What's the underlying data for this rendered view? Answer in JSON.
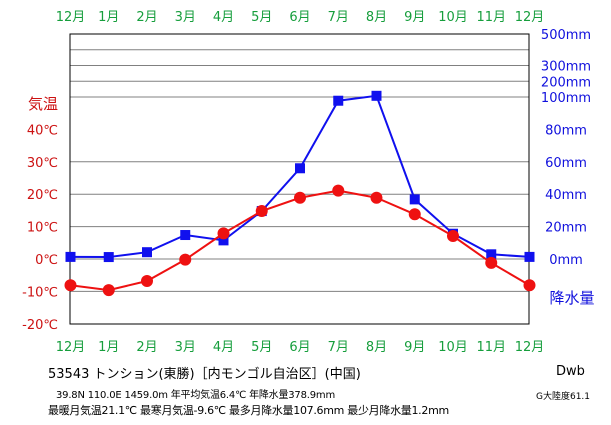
{
  "chart_data": {
    "type": "line",
    "months": [
      "12月",
      "1月",
      "2月",
      "3月",
      "4月",
      "5月",
      "6月",
      "7月",
      "8月",
      "9月",
      "10月",
      "11月",
      "12月"
    ],
    "temp_label": "気温",
    "temp_ticks": [
      "40℃",
      "30℃",
      "20℃",
      "10℃",
      "0℃",
      "-10℃",
      "-20℃"
    ],
    "temp_ylim": [
      -20,
      40
    ],
    "precip_label": "降水量",
    "precip_ticks": [
      "500mm",
      "300mm",
      "200mm",
      "100mm",
      "80mm",
      "60mm",
      "40mm",
      "20mm",
      "0mm"
    ],
    "precip_ylim": [
      0,
      500
    ],
    "series": [
      {
        "name": "気温",
        "unit": "℃",
        "color": "#ee1111",
        "marker": "circle",
        "values": [
          -8.1,
          -9.6,
          -6.8,
          -0.2,
          7.9,
          14.8,
          18.9,
          21.1,
          18.9,
          13.8,
          7.1,
          -1.2,
          -8.1
        ]
      },
      {
        "name": "降水量",
        "unit": "mm",
        "color": "#1010ee",
        "marker": "square",
        "values": [
          1.3,
          1.2,
          4.2,
          14.8,
          11.5,
          29.6,
          56.0,
          97.7,
          107.6,
          36.8,
          15.6,
          2.9,
          1.3
        ]
      }
    ],
    "colors": {
      "month_text": "#169e3c",
      "temp_axis": "#cc1111",
      "precip_axis": "#1010dd",
      "grid": "#808080",
      "frame": "#000000"
    }
  },
  "footer": {
    "station": "53543 トンション(東勝)［内モンゴル自治区］(中国)",
    "line1": "39.8N  110.0E  1459.0m 年平均気温6.4℃ 年降水量378.9mm",
    "line2": "最暖月気温21.1℃ 最寒月気温-9.6℃ 最多月降水量107.6mm 最少月降水量1.2mm",
    "climate": "Dwb",
    "continent": "G大陸度61.1"
  }
}
